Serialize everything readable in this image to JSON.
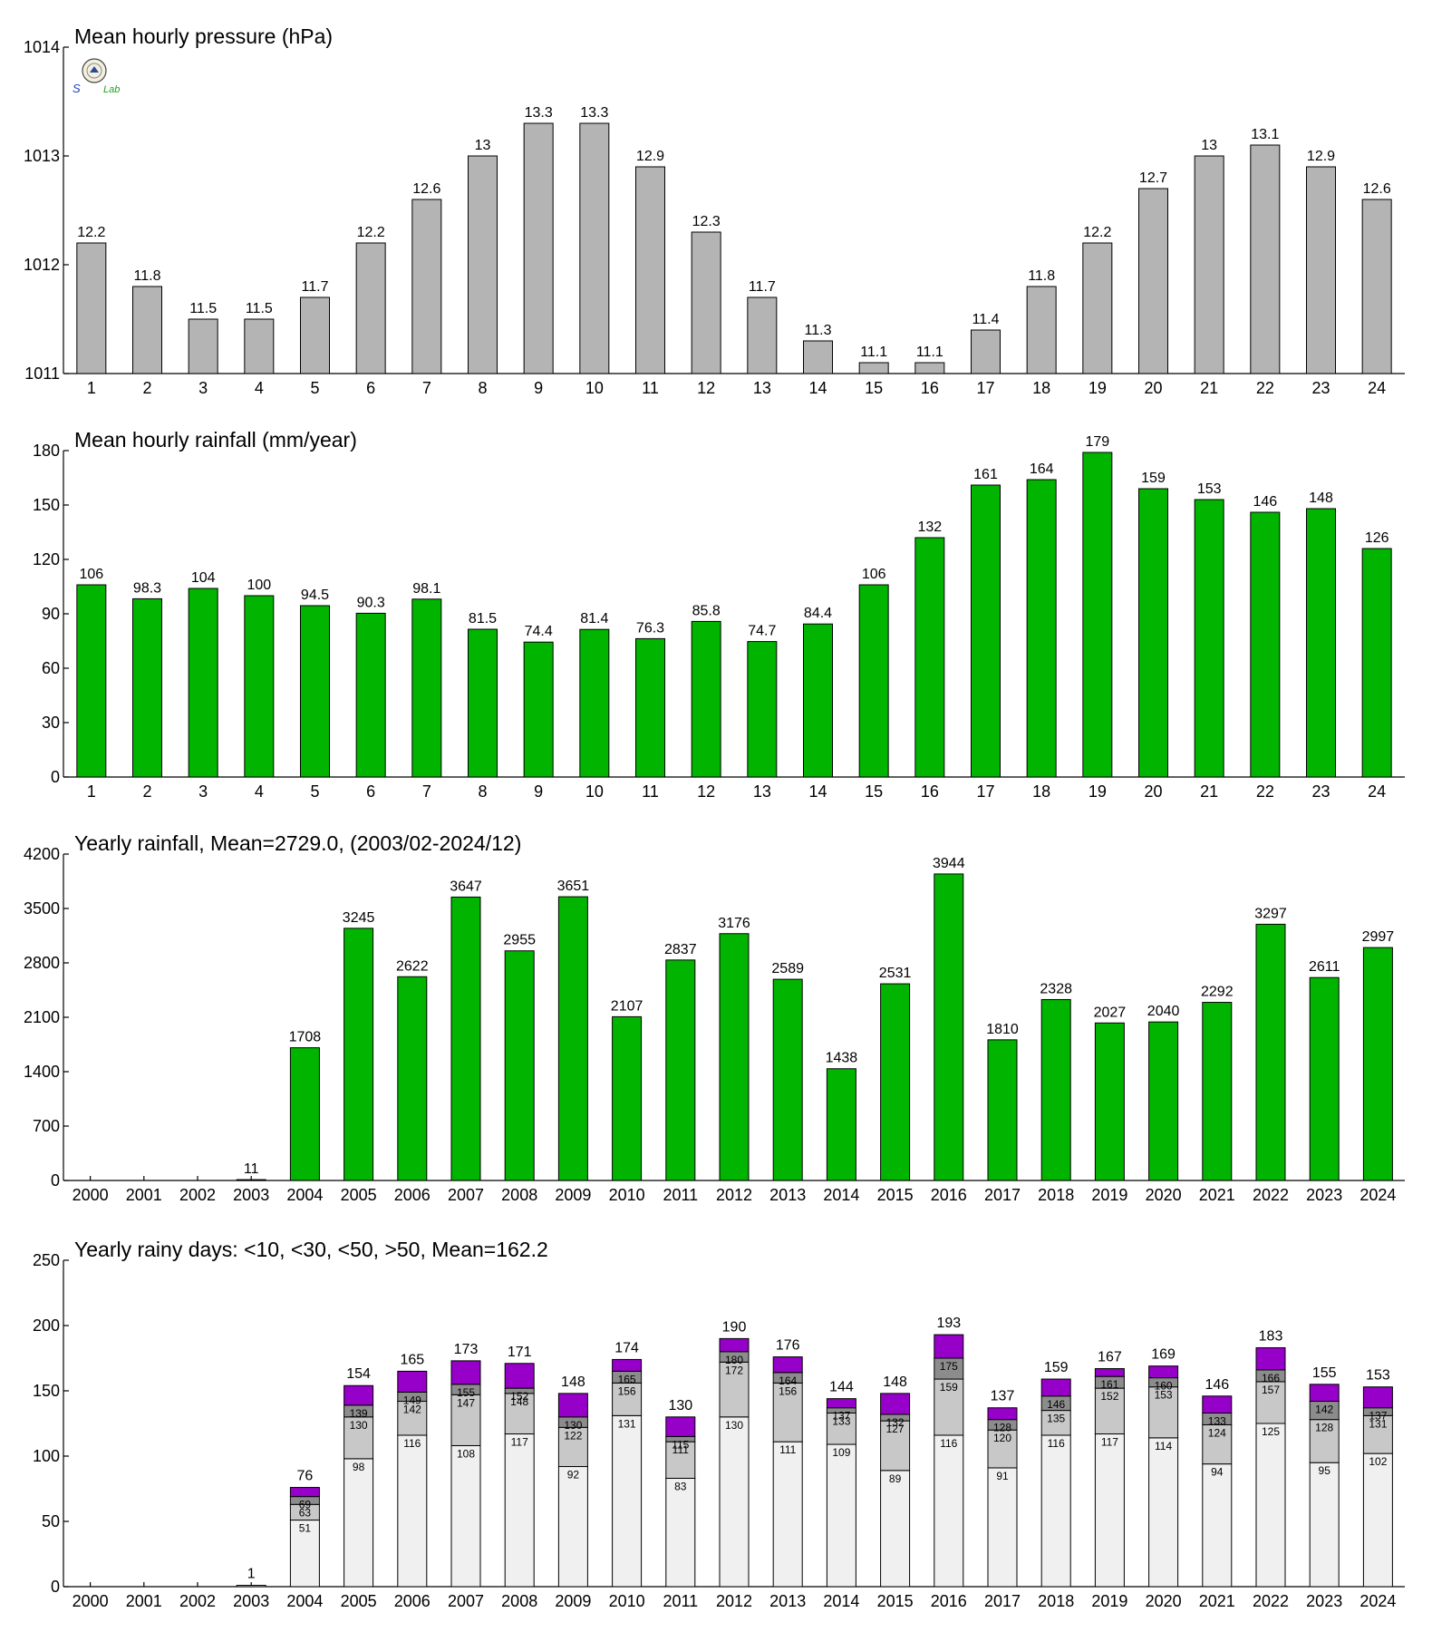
{
  "logo": {
    "text": "Lab",
    "alt_letters": "S"
  },
  "colors": {
    "pressure_bar": "#b4b4b4",
    "rain_bar": "#00b400",
    "days_lt10": "#f0f0f0",
    "days_lt30": "#c8c8c8",
    "days_lt50": "#8c8c8c",
    "days_gt50": "#9600c8"
  },
  "chart_data": [
    {
      "type": "bar",
      "title": "Mean hourly pressure (hPa)",
      "categories": [
        "1",
        "2",
        "3",
        "4",
        "5",
        "6",
        "7",
        "8",
        "9",
        "10",
        "11",
        "12",
        "13",
        "14",
        "15",
        "16",
        "17",
        "18",
        "19",
        "20",
        "21",
        "22",
        "23",
        "24"
      ],
      "values": [
        1012.2,
        1011.8,
        1011.5,
        1011.5,
        1011.7,
        1012.2,
        1012.6,
        1013,
        1013.3,
        1013.3,
        1012.9,
        1012.3,
        1011.7,
        1011.3,
        1011.1,
        1011.1,
        1011.4,
        1011.8,
        1012.2,
        1012.7,
        1013,
        1013.1,
        1012.9,
        1012.6
      ],
      "labels": [
        "12.2",
        "11.8",
        "11.5",
        "11.5",
        "11.7",
        "12.2",
        "12.6",
        "13",
        "13.3",
        "13.3",
        "12.9",
        "12.3",
        "11.7",
        "11.3",
        "11.1",
        "11.1",
        "11.4",
        "11.8",
        "12.2",
        "12.7",
        "13",
        "13.1",
        "12.9",
        "12.6"
      ],
      "ylim": [
        1011,
        1014
      ],
      "yticks": [
        1011,
        1012,
        1013,
        1014
      ],
      "grid": false
    },
    {
      "type": "bar",
      "title": "Mean hourly rainfall (mm/year)",
      "categories": [
        "1",
        "2",
        "3",
        "4",
        "5",
        "6",
        "7",
        "8",
        "9",
        "10",
        "11",
        "12",
        "13",
        "14",
        "15",
        "16",
        "17",
        "18",
        "19",
        "20",
        "21",
        "22",
        "23",
        "24"
      ],
      "values": [
        106,
        98.3,
        104,
        100,
        94.5,
        90.3,
        98.1,
        81.5,
        74.4,
        81.4,
        76.3,
        85.8,
        74.7,
        84.4,
        106,
        132,
        161,
        164,
        179,
        159,
        153,
        146,
        148,
        126
      ],
      "labels": [
        "106",
        "98.3",
        "104",
        "100",
        "94.5",
        "90.3",
        "98.1",
        "81.5",
        "74.4",
        "81.4",
        "76.3",
        "85.8",
        "74.7",
        "84.4",
        "106",
        "132",
        "161",
        "164",
        "179",
        "159",
        "153",
        "146",
        "148",
        "126"
      ],
      "ylim": [
        0,
        180
      ],
      "yticks": [
        0,
        30,
        60,
        90,
        120,
        150,
        180
      ],
      "grid": false
    },
    {
      "type": "bar",
      "title": "Yearly rainfall, Mean=2729.0, (2003/02-2024/12)",
      "categories": [
        "2000",
        "2001",
        "2002",
        "2003",
        "2004",
        "2005",
        "2006",
        "2007",
        "2008",
        "2009",
        "2010",
        "2011",
        "2012",
        "2013",
        "2014",
        "2015",
        "2016",
        "2017",
        "2018",
        "2019",
        "2020",
        "2021",
        "2022",
        "2023",
        "2024"
      ],
      "values": [
        null,
        null,
        null,
        11,
        1708,
        3245,
        2622,
        3647,
        2955,
        3651,
        2107,
        2837,
        3176,
        2589,
        1438,
        2531,
        3944,
        1810,
        2328,
        2027,
        2040,
        2292,
        3297,
        2611,
        2997
      ],
      "labels": [
        "",
        "",
        "",
        "11",
        "1708",
        "3245",
        "2622",
        "3647",
        "2955",
        "3651",
        "2107",
        "2837",
        "3176",
        "2589",
        "1438",
        "2531",
        "3944",
        "1810",
        "2328",
        "2027",
        "2040",
        "2292",
        "3297",
        "2611",
        "2997"
      ],
      "ylim": [
        0,
        4200
      ],
      "yticks": [
        0,
        700,
        1400,
        2100,
        2800,
        3500,
        4200
      ],
      "grid": false
    },
    {
      "type": "bar",
      "stacked": true,
      "title": "Yearly rainy days: <10, <30, <50, >50, Mean=162.2",
      "categories": [
        "2000",
        "2001",
        "2002",
        "2003",
        "2004",
        "2005",
        "2006",
        "2007",
        "2008",
        "2009",
        "2010",
        "2011",
        "2012",
        "2013",
        "2014",
        "2015",
        "2016",
        "2017",
        "2018",
        "2019",
        "2020",
        "2021",
        "2022",
        "2023",
        "2024"
      ],
      "cumulative": [
        [
          null,
          null,
          null,
          null
        ],
        [
          null,
          null,
          null,
          null
        ],
        [
          null,
          null,
          null,
          null
        ],
        [
          1,
          1,
          1,
          1
        ],
        [
          51,
          63,
          69,
          76
        ],
        [
          98,
          130,
          139,
          154
        ],
        [
          116,
          142,
          149,
          165
        ],
        [
          108,
          147,
          155,
          173
        ],
        [
          117,
          148,
          152,
          171
        ],
        [
          92,
          122,
          130,
          148
        ],
        [
          131,
          156,
          165,
          174
        ],
        [
          83,
          111,
          115,
          130
        ],
        [
          130,
          172,
          180,
          190
        ],
        [
          111,
          156,
          164,
          176
        ],
        [
          109,
          133,
          137,
          144
        ],
        [
          89,
          127,
          132,
          148
        ],
        [
          116,
          159,
          175,
          193
        ],
        [
          91,
          120,
          128,
          137
        ],
        [
          116,
          135,
          146,
          159
        ],
        [
          117,
          152,
          161,
          167
        ],
        [
          114,
          153,
          160,
          169
        ],
        [
          94,
          124,
          133,
          146
        ],
        [
          125,
          157,
          166,
          183
        ],
        [
          95,
          128,
          142,
          155
        ],
        [
          102,
          131,
          137,
          153
        ]
      ],
      "totals": [
        "",
        "",
        "",
        "1",
        "76",
        "154",
        "165",
        "173",
        "171",
        "148",
        "174",
        "130",
        "190",
        "176",
        "144",
        "148",
        "193",
        "137",
        "159",
        "167",
        "169",
        "146",
        "183",
        "155",
        "153"
      ],
      "ylim": [
        0,
        250
      ],
      "yticks": [
        0,
        50,
        100,
        150,
        200,
        250
      ],
      "grid": false
    }
  ]
}
